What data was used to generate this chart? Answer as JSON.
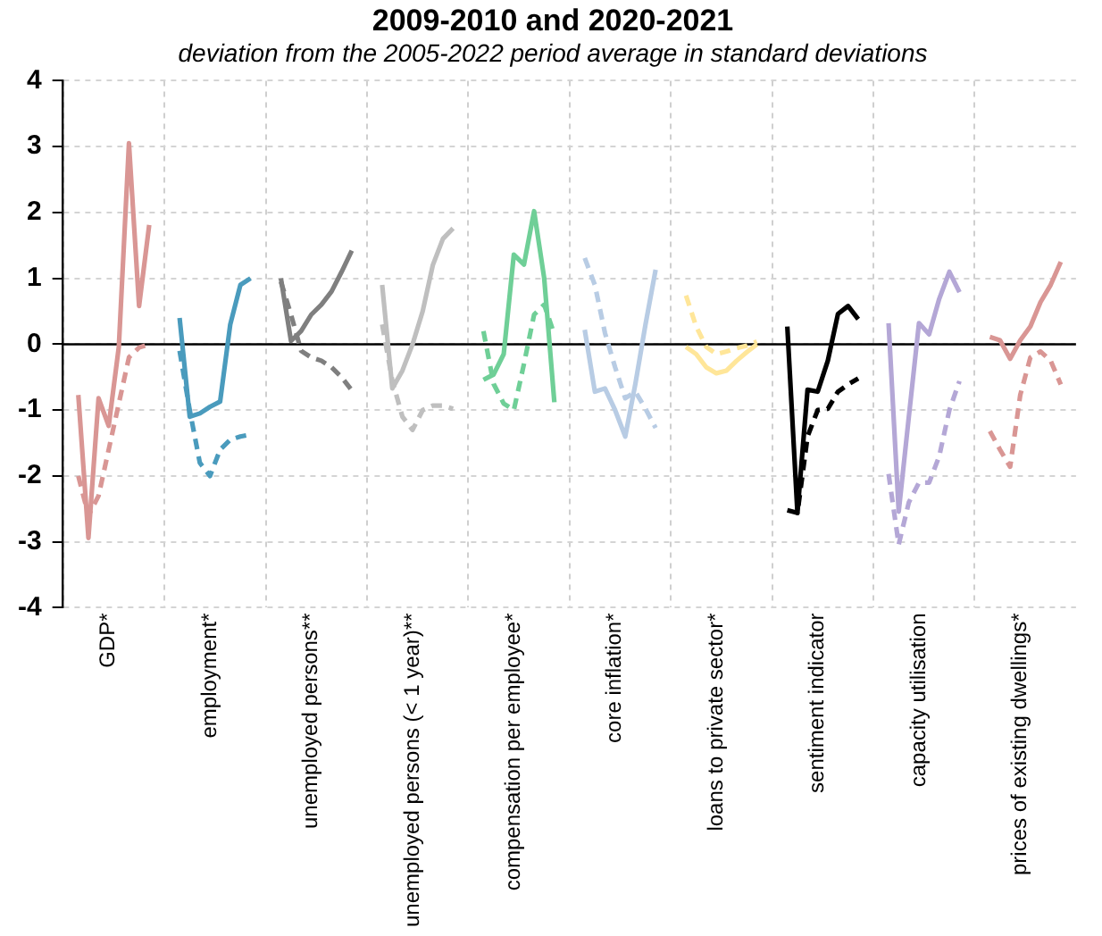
{
  "chart_data": {
    "type": "line",
    "title": "2009-2010 and 2020-2021",
    "subtitle": "deviation from the 2005-2022 period average in standard deviations",
    "categories": [
      null,
      null,
      null,
      null,
      "GDP*",
      null,
      null,
      null,
      null,
      null,
      null,
      null,
      null,
      null,
      "employment*",
      null,
      null,
      null,
      null,
      null,
      null,
      null,
      null,
      null,
      "unemployed persons**",
      null,
      null,
      null,
      null,
      null,
      null,
      null,
      null,
      null,
      "unemployed persons (< 1 year)**",
      null,
      null,
      null,
      null,
      null,
      null,
      null,
      null,
      null,
      "compensation per employee*",
      null,
      null,
      null,
      null,
      null,
      null,
      null,
      null,
      null,
      "core inflation*",
      null,
      null,
      null,
      null,
      null,
      null,
      null,
      null,
      null,
      "loans to private sector*",
      null,
      null,
      null,
      null,
      null,
      null,
      null,
      null,
      null,
      "sentiment indicator",
      null,
      null,
      null,
      null,
      null,
      null,
      null,
      null,
      null,
      "capacity utilisation",
      null,
      null,
      null,
      null,
      null,
      null,
      null,
      null,
      null,
      "prices of existing dwellings*",
      null,
      null,
      null,
      null,
      null
    ],
    "ylim": [
      -4,
      4
    ],
    "yticks": [
      -4,
      -3,
      -2,
      -1,
      0,
      1,
      2,
      3,
      4
    ],
    "grid": true,
    "legend": false,
    "marker": "none",
    "ref_lines": [
      {
        "axis": "y",
        "value": 0,
        "color": "#000000"
      }
    ],
    "series": [
      {
        "color": "#d99694",
        "line_style": "solid",
        "values": [
          null,
          -0.77,
          -2.94,
          -0.82,
          -1.24,
          -0.04,
          3.05,
          0.58,
          1.81,
          null,
          null,
          null,
          null,
          null,
          null,
          null,
          null,
          null,
          null,
          null,
          null,
          null,
          null,
          null,
          null,
          null,
          null,
          null,
          null,
          null,
          null,
          null,
          null,
          null,
          null,
          null,
          null,
          null,
          null,
          null,
          null,
          null,
          null,
          null,
          null,
          null,
          null,
          null,
          null,
          null,
          null,
          null,
          null,
          null,
          null,
          null,
          null,
          null,
          null,
          null,
          null,
          null,
          null,
          null,
          null,
          null,
          null,
          null,
          null,
          null,
          null,
          null,
          null,
          null,
          null,
          null,
          null,
          null,
          null,
          null,
          null,
          null,
          null,
          null,
          null,
          null,
          null,
          null,
          null,
          null,
          null,
          null,
          null,
          null,
          null,
          null,
          null,
          null,
          null,
          null
        ]
      },
      {
        "color": "#d99694",
        "line_style": "dashed",
        "values": [
          null,
          -2.0,
          -2.6,
          -2.3,
          -1.6,
          -0.9,
          -0.2,
          -0.05,
          0.0,
          null,
          null,
          null,
          null,
          null,
          null,
          null,
          null,
          null,
          null,
          null,
          null,
          null,
          null,
          null,
          null,
          null,
          null,
          null,
          null,
          null,
          null,
          null,
          null,
          null,
          null,
          null,
          null,
          null,
          null,
          null,
          null,
          null,
          null,
          null,
          null,
          null,
          null,
          null,
          null,
          null,
          null,
          null,
          null,
          null,
          null,
          null,
          null,
          null,
          null,
          null,
          null,
          null,
          null,
          null,
          null,
          null,
          null,
          null,
          null,
          null,
          null,
          null,
          null,
          null,
          null,
          null,
          null,
          null,
          null,
          null,
          null,
          null,
          null,
          null,
          null,
          null,
          null,
          null,
          null,
          null,
          null,
          null,
          null,
          null,
          null,
          null,
          null,
          null,
          null,
          null
        ]
      },
      {
        "color": "#4a9bbd",
        "line_style": "solid",
        "values": [
          null,
          null,
          null,
          null,
          null,
          null,
          null,
          null,
          null,
          null,
          null,
          0.4,
          -1.1,
          -1.05,
          -0.95,
          -0.87,
          0.3,
          0.9,
          1.0,
          null,
          null,
          null,
          null,
          null,
          null,
          null,
          null,
          null,
          null,
          null,
          null,
          null,
          null,
          null,
          null,
          null,
          null,
          null,
          null,
          null,
          null,
          null,
          null,
          null,
          null,
          null,
          null,
          null,
          null,
          null,
          null,
          null,
          null,
          null,
          null,
          null,
          null,
          null,
          null,
          null,
          null,
          null,
          null,
          null,
          null,
          null,
          null,
          null,
          null,
          null,
          null,
          null,
          null,
          null,
          null,
          null,
          null,
          null,
          null,
          null,
          null,
          null,
          null,
          null,
          null,
          null,
          null,
          null,
          null,
          null,
          null,
          null,
          null,
          null,
          null,
          null,
          null,
          null,
          null,
          null
        ]
      },
      {
        "color": "#4a9bbd",
        "line_style": "dashed",
        "values": [
          null,
          null,
          null,
          null,
          null,
          null,
          null,
          null,
          null,
          null,
          null,
          -0.1,
          -1.0,
          -1.8,
          -2.0,
          -1.6,
          -1.45,
          -1.4,
          -1.37,
          null,
          null,
          null,
          null,
          null,
          null,
          null,
          null,
          null,
          null,
          null,
          null,
          null,
          null,
          null,
          null,
          null,
          null,
          null,
          null,
          null,
          null,
          null,
          null,
          null,
          null,
          null,
          null,
          null,
          null,
          null,
          null,
          null,
          null,
          null,
          null,
          null,
          null,
          null,
          null,
          null,
          null,
          null,
          null,
          null,
          null,
          null,
          null,
          null,
          null,
          null,
          null,
          null,
          null,
          null,
          null,
          null,
          null,
          null,
          null,
          null,
          null,
          null,
          null,
          null,
          null,
          null,
          null,
          null,
          null,
          null,
          null,
          null,
          null,
          null,
          null,
          null,
          null,
          null,
          null,
          null
        ]
      },
      {
        "color": "#7f7f7f",
        "line_style": "solid",
        "values": [
          null,
          null,
          null,
          null,
          null,
          null,
          null,
          null,
          null,
          null,
          null,
          null,
          null,
          null,
          null,
          null,
          null,
          null,
          null,
          null,
          null,
          1.0,
          0.05,
          0.2,
          0.45,
          0.6,
          0.8,
          1.1,
          1.42,
          null,
          null,
          null,
          null,
          null,
          null,
          null,
          null,
          null,
          null,
          null,
          null,
          null,
          null,
          null,
          null,
          null,
          null,
          null,
          null,
          null,
          null,
          null,
          null,
          null,
          null,
          null,
          null,
          null,
          null,
          null,
          null,
          null,
          null,
          null,
          null,
          null,
          null,
          null,
          null,
          null,
          null,
          null,
          null,
          null,
          null,
          null,
          null,
          null,
          null,
          null,
          null,
          null,
          null,
          null,
          null,
          null,
          null,
          null,
          null,
          null,
          null,
          null,
          null,
          null,
          null,
          null,
          null,
          null,
          null,
          null
        ]
      },
      {
        "color": "#7f7f7f",
        "line_style": "dashed",
        "values": [
          null,
          null,
          null,
          null,
          null,
          null,
          null,
          null,
          null,
          null,
          null,
          null,
          null,
          null,
          null,
          null,
          null,
          null,
          null,
          null,
          null,
          0.95,
          0.45,
          -0.1,
          -0.2,
          -0.25,
          -0.35,
          -0.5,
          -0.7,
          null,
          null,
          null,
          null,
          null,
          null,
          null,
          null,
          null,
          null,
          null,
          null,
          null,
          null,
          null,
          null,
          null,
          null,
          null,
          null,
          null,
          null,
          null,
          null,
          null,
          null,
          null,
          null,
          null,
          null,
          null,
          null,
          null,
          null,
          null,
          null,
          null,
          null,
          null,
          null,
          null,
          null,
          null,
          null,
          null,
          null,
          null,
          null,
          null,
          null,
          null,
          null,
          null,
          null,
          null,
          null,
          null,
          null,
          null,
          null,
          null,
          null,
          null,
          null,
          null,
          null,
          null,
          null,
          null,
          null,
          null
        ]
      },
      {
        "color": "#bfbfbf",
        "line_style": "solid",
        "values": [
          null,
          null,
          null,
          null,
          null,
          null,
          null,
          null,
          null,
          null,
          null,
          null,
          null,
          null,
          null,
          null,
          null,
          null,
          null,
          null,
          null,
          null,
          null,
          null,
          null,
          null,
          null,
          null,
          null,
          null,
          null,
          0.9,
          -0.67,
          -0.4,
          0.0,
          0.5,
          1.2,
          1.6,
          1.76,
          null,
          null,
          null,
          null,
          null,
          null,
          null,
          null,
          null,
          null,
          null,
          null,
          null,
          null,
          null,
          null,
          null,
          null,
          null,
          null,
          null,
          null,
          null,
          null,
          null,
          null,
          null,
          null,
          null,
          null,
          null,
          null,
          null,
          null,
          null,
          null,
          null,
          null,
          null,
          null,
          null,
          null,
          null,
          null,
          null,
          null,
          null,
          null,
          null,
          null,
          null,
          null,
          null,
          null,
          null,
          null,
          null,
          null,
          null,
          null,
          null
        ]
      },
      {
        "color": "#bfbfbf",
        "line_style": "dashed",
        "values": [
          null,
          null,
          null,
          null,
          null,
          null,
          null,
          null,
          null,
          null,
          null,
          null,
          null,
          null,
          null,
          null,
          null,
          null,
          null,
          null,
          null,
          null,
          null,
          null,
          null,
          null,
          null,
          null,
          null,
          null,
          null,
          0.3,
          -0.55,
          -1.1,
          -1.3,
          -1.0,
          -0.93,
          -0.93,
          -0.98,
          null,
          null,
          null,
          null,
          null,
          null,
          null,
          null,
          null,
          null,
          null,
          null,
          null,
          null,
          null,
          null,
          null,
          null,
          null,
          null,
          null,
          null,
          null,
          null,
          null,
          null,
          null,
          null,
          null,
          null,
          null,
          null,
          null,
          null,
          null,
          null,
          null,
          null,
          null,
          null,
          null,
          null,
          null,
          null,
          null,
          null,
          null,
          null,
          null,
          null,
          null,
          null,
          null,
          null,
          null,
          null,
          null,
          null,
          null,
          null,
          null
        ]
      },
      {
        "color": "#6fcf97",
        "line_style": "solid",
        "values": [
          null,
          null,
          null,
          null,
          null,
          null,
          null,
          null,
          null,
          null,
          null,
          null,
          null,
          null,
          null,
          null,
          null,
          null,
          null,
          null,
          null,
          null,
          null,
          null,
          null,
          null,
          null,
          null,
          null,
          null,
          null,
          null,
          null,
          null,
          null,
          null,
          null,
          null,
          null,
          null,
          null,
          -0.54,
          -0.46,
          -0.15,
          1.36,
          1.21,
          2.02,
          1.0,
          -0.88,
          null,
          null,
          null,
          null,
          null,
          null,
          null,
          null,
          null,
          null,
          null,
          null,
          null,
          null,
          null,
          null,
          null,
          null,
          null,
          null,
          null,
          null,
          null,
          null,
          null,
          null,
          null,
          null,
          null,
          null,
          null,
          null,
          null,
          null,
          null,
          null,
          null,
          null,
          null,
          null,
          null,
          null,
          null,
          null,
          null,
          null,
          null,
          null,
          null,
          null,
          null
        ]
      },
      {
        "color": "#6fcf97",
        "line_style": "dashed",
        "values": [
          null,
          null,
          null,
          null,
          null,
          null,
          null,
          null,
          null,
          null,
          null,
          null,
          null,
          null,
          null,
          null,
          null,
          null,
          null,
          null,
          null,
          null,
          null,
          null,
          null,
          null,
          null,
          null,
          null,
          null,
          null,
          null,
          null,
          null,
          null,
          null,
          null,
          null,
          null,
          null,
          null,
          0.2,
          -0.6,
          -0.9,
          -1.0,
          -0.3,
          0.45,
          0.6,
          0.15,
          null,
          null,
          null,
          null,
          null,
          null,
          null,
          null,
          null,
          null,
          null,
          null,
          null,
          null,
          null,
          null,
          null,
          null,
          null,
          null,
          null,
          null,
          null,
          null,
          null,
          null,
          null,
          null,
          null,
          null,
          null,
          null,
          null,
          null,
          null,
          null,
          null,
          null,
          null,
          null,
          null,
          null,
          null,
          null,
          null,
          null,
          null,
          null,
          null,
          null,
          null
        ]
      },
      {
        "color": "#b8cce4",
        "line_style": "solid",
        "values": [
          null,
          null,
          null,
          null,
          null,
          null,
          null,
          null,
          null,
          null,
          null,
          null,
          null,
          null,
          null,
          null,
          null,
          null,
          null,
          null,
          null,
          null,
          null,
          null,
          null,
          null,
          null,
          null,
          null,
          null,
          null,
          null,
          null,
          null,
          null,
          null,
          null,
          null,
          null,
          null,
          null,
          null,
          null,
          null,
          null,
          null,
          null,
          null,
          null,
          null,
          null,
          0.22,
          -0.72,
          -0.67,
          -1.0,
          -1.4,
          -0.6,
          0.3,
          1.13,
          null,
          null,
          null,
          null,
          null,
          null,
          null,
          null,
          null,
          null,
          null,
          null,
          null,
          null,
          null,
          null,
          null,
          null,
          null,
          null,
          null,
          null,
          null,
          null,
          null,
          null,
          null,
          null,
          null,
          null,
          null,
          null,
          null,
          null,
          null,
          null,
          null,
          null,
          null,
          null,
          null
        ]
      },
      {
        "color": "#b8cce4",
        "line_style": "dashed",
        "values": [
          null,
          null,
          null,
          null,
          null,
          null,
          null,
          null,
          null,
          null,
          null,
          null,
          null,
          null,
          null,
          null,
          null,
          null,
          null,
          null,
          null,
          null,
          null,
          null,
          null,
          null,
          null,
          null,
          null,
          null,
          null,
          null,
          null,
          null,
          null,
          null,
          null,
          null,
          null,
          null,
          null,
          null,
          null,
          null,
          null,
          null,
          null,
          null,
          null,
          null,
          null,
          1.31,
          0.9,
          0.17,
          -0.35,
          -0.82,
          -0.72,
          -0.98,
          -1.27,
          null,
          null,
          null,
          null,
          null,
          null,
          null,
          null,
          null,
          null,
          null,
          null,
          null,
          null,
          null,
          null,
          null,
          null,
          null,
          null,
          null,
          null,
          null,
          null,
          null,
          null,
          null,
          null,
          null,
          null,
          null,
          null,
          null,
          null,
          null,
          null,
          null,
          null,
          null,
          null,
          null
        ]
      },
      {
        "color": "#ffe699",
        "line_style": "solid",
        "values": [
          null,
          null,
          null,
          null,
          null,
          null,
          null,
          null,
          null,
          null,
          null,
          null,
          null,
          null,
          null,
          null,
          null,
          null,
          null,
          null,
          null,
          null,
          null,
          null,
          null,
          null,
          null,
          null,
          null,
          null,
          null,
          null,
          null,
          null,
          null,
          null,
          null,
          null,
          null,
          null,
          null,
          null,
          null,
          null,
          null,
          null,
          null,
          null,
          null,
          null,
          null,
          null,
          null,
          null,
          null,
          null,
          null,
          null,
          null,
          null,
          null,
          -0.04,
          -0.15,
          -0.35,
          -0.44,
          -0.4,
          -0.25,
          -0.12,
          0.0,
          null,
          null,
          null,
          null,
          null,
          null,
          null,
          null,
          null,
          null,
          null,
          null,
          null,
          null,
          null,
          null,
          null,
          null,
          null,
          null,
          null,
          null,
          null,
          null,
          null,
          null,
          null,
          null,
          null,
          null,
          null
        ]
      },
      {
        "color": "#ffe699",
        "line_style": "dashed",
        "values": [
          null,
          null,
          null,
          null,
          null,
          null,
          null,
          null,
          null,
          null,
          null,
          null,
          null,
          null,
          null,
          null,
          null,
          null,
          null,
          null,
          null,
          null,
          null,
          null,
          null,
          null,
          null,
          null,
          null,
          null,
          null,
          null,
          null,
          null,
          null,
          null,
          null,
          null,
          null,
          null,
          null,
          null,
          null,
          null,
          null,
          null,
          null,
          null,
          null,
          null,
          null,
          null,
          null,
          null,
          null,
          null,
          null,
          null,
          null,
          null,
          null,
          0.74,
          0.27,
          -0.04,
          -0.15,
          -0.11,
          -0.06,
          -0.02,
          0.04,
          null,
          null,
          null,
          null,
          null,
          null,
          null,
          null,
          null,
          null,
          null,
          null,
          null,
          null,
          null,
          null,
          null,
          null,
          null,
          null,
          null,
          null,
          null,
          null,
          null,
          null,
          null,
          null,
          null,
          null,
          null
        ]
      },
      {
        "color": "#000000",
        "line_style": "solid",
        "values": [
          null,
          null,
          null,
          null,
          null,
          null,
          null,
          null,
          null,
          null,
          null,
          null,
          null,
          null,
          null,
          null,
          null,
          null,
          null,
          null,
          null,
          null,
          null,
          null,
          null,
          null,
          null,
          null,
          null,
          null,
          null,
          null,
          null,
          null,
          null,
          null,
          null,
          null,
          null,
          null,
          null,
          null,
          null,
          null,
          null,
          null,
          null,
          null,
          null,
          null,
          null,
          null,
          null,
          null,
          null,
          null,
          null,
          null,
          null,
          null,
          null,
          null,
          null,
          null,
          null,
          null,
          null,
          null,
          null,
          null,
          null,
          0.27,
          -2.56,
          -0.69,
          -0.72,
          -0.25,
          0.46,
          0.58,
          0.38,
          null,
          null,
          null,
          null,
          null,
          null,
          null,
          null,
          null,
          null,
          null,
          null,
          null,
          null,
          null,
          null,
          null,
          null,
          null,
          null,
          null
        ]
      },
      {
        "color": "#000000",
        "line_style": "dashed",
        "values": [
          null,
          null,
          null,
          null,
          null,
          null,
          null,
          null,
          null,
          null,
          null,
          null,
          null,
          null,
          null,
          null,
          null,
          null,
          null,
          null,
          null,
          null,
          null,
          null,
          null,
          null,
          null,
          null,
          null,
          null,
          null,
          null,
          null,
          null,
          null,
          null,
          null,
          null,
          null,
          null,
          null,
          null,
          null,
          null,
          null,
          null,
          null,
          null,
          null,
          null,
          null,
          null,
          null,
          null,
          null,
          null,
          null,
          null,
          null,
          null,
          null,
          null,
          null,
          null,
          null,
          null,
          null,
          null,
          null,
          null,
          null,
          -2.52,
          -2.56,
          -1.4,
          -1.0,
          -0.98,
          -0.72,
          -0.61,
          -0.52,
          null,
          null,
          null,
          null,
          null,
          null,
          null,
          null,
          null,
          null,
          null,
          null,
          null,
          null,
          null,
          null,
          null,
          null,
          null,
          null,
          null
        ]
      },
      {
        "color": "#b4a7d6",
        "line_style": "solid",
        "values": [
          null,
          null,
          null,
          null,
          null,
          null,
          null,
          null,
          null,
          null,
          null,
          null,
          null,
          null,
          null,
          null,
          null,
          null,
          null,
          null,
          null,
          null,
          null,
          null,
          null,
          null,
          null,
          null,
          null,
          null,
          null,
          null,
          null,
          null,
          null,
          null,
          null,
          null,
          null,
          null,
          null,
          null,
          null,
          null,
          null,
          null,
          null,
          null,
          null,
          null,
          null,
          null,
          null,
          null,
          null,
          null,
          null,
          null,
          null,
          null,
          null,
          null,
          null,
          null,
          null,
          null,
          null,
          null,
          null,
          null,
          null,
          null,
          null,
          null,
          null,
          null,
          null,
          null,
          null,
          null,
          null,
          0.32,
          -2.54,
          -1.1,
          0.32,
          0.15,
          0.69,
          1.1,
          0.79,
          null,
          null,
          null,
          null,
          null,
          null,
          null,
          null,
          null,
          null,
          null
        ]
      },
      {
        "color": "#b4a7d6",
        "line_style": "dashed",
        "values": [
          null,
          null,
          null,
          null,
          null,
          null,
          null,
          null,
          null,
          null,
          null,
          null,
          null,
          null,
          null,
          null,
          null,
          null,
          null,
          null,
          null,
          null,
          null,
          null,
          null,
          null,
          null,
          null,
          null,
          null,
          null,
          null,
          null,
          null,
          null,
          null,
          null,
          null,
          null,
          null,
          null,
          null,
          null,
          null,
          null,
          null,
          null,
          null,
          null,
          null,
          null,
          null,
          null,
          null,
          null,
          null,
          null,
          null,
          null,
          null,
          null,
          null,
          null,
          null,
          null,
          null,
          null,
          null,
          null,
          null,
          null,
          null,
          null,
          null,
          null,
          null,
          null,
          null,
          null,
          null,
          null,
          -1.97,
          -3.04,
          -2.4,
          -2.1,
          -2.1,
          -1.7,
          -1.0,
          -0.56,
          null,
          null,
          null,
          null,
          null,
          null,
          null,
          null,
          null,
          null,
          null
        ]
      },
      {
        "color": "#d99694",
        "line_style": "solid",
        "values": [
          null,
          null,
          null,
          null,
          null,
          null,
          null,
          null,
          null,
          null,
          null,
          null,
          null,
          null,
          null,
          null,
          null,
          null,
          null,
          null,
          null,
          null,
          null,
          null,
          null,
          null,
          null,
          null,
          null,
          null,
          null,
          null,
          null,
          null,
          null,
          null,
          null,
          null,
          null,
          null,
          null,
          null,
          null,
          null,
          null,
          null,
          null,
          null,
          null,
          null,
          null,
          null,
          null,
          null,
          null,
          null,
          null,
          null,
          null,
          null,
          null,
          null,
          null,
          null,
          null,
          null,
          null,
          null,
          null,
          null,
          null,
          null,
          null,
          null,
          null,
          null,
          null,
          null,
          null,
          null,
          null,
          null,
          null,
          null,
          null,
          null,
          null,
          null,
          null,
          null,
          null,
          0.11,
          0.06,
          -0.22,
          0.06,
          0.27,
          0.64,
          0.9,
          1.25,
          null
        ]
      },
      {
        "color": "#d99694",
        "line_style": "dashed",
        "values": [
          null,
          null,
          null,
          null,
          null,
          null,
          null,
          null,
          null,
          null,
          null,
          null,
          null,
          null,
          null,
          null,
          null,
          null,
          null,
          null,
          null,
          null,
          null,
          null,
          null,
          null,
          null,
          null,
          null,
          null,
          null,
          null,
          null,
          null,
          null,
          null,
          null,
          null,
          null,
          null,
          null,
          null,
          null,
          null,
          null,
          null,
          null,
          null,
          null,
          null,
          null,
          null,
          null,
          null,
          null,
          null,
          null,
          null,
          null,
          null,
          null,
          null,
          null,
          null,
          null,
          null,
          null,
          null,
          null,
          null,
          null,
          null,
          null,
          null,
          null,
          null,
          null,
          null,
          null,
          null,
          null,
          null,
          null,
          null,
          null,
          null,
          null,
          null,
          null,
          null,
          null,
          -1.32,
          -1.6,
          -1.86,
          -0.77,
          -0.2,
          -0.11,
          -0.25,
          -0.61,
          null
        ]
      }
    ]
  }
}
